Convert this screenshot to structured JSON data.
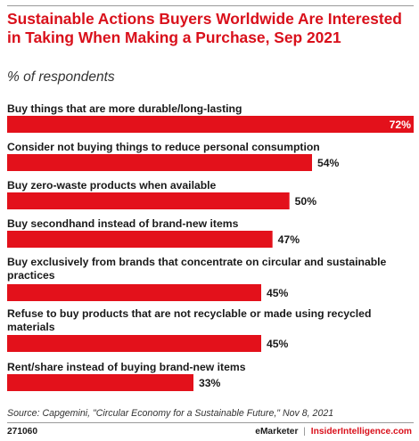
{
  "title": "Sustainable Actions Buyers Worldwide Are Interested in Taking When Making a Purchase, Sep 2021",
  "subtitle": "% of respondents",
  "colors": {
    "accent": "#d9101b",
    "bar": "#e3111b",
    "text": "#1a1a1a"
  },
  "chart_data": {
    "type": "bar",
    "orientation": "horizontal",
    "categories": [
      "Buy things that are more durable/long-lasting",
      "Consider not buying things to reduce personal consumption",
      "Buy zero-waste products when available",
      "Buy secondhand instead of brand-new items",
      "Buy exclusively from brands that concentrate on circular and sustainable practices",
      "Refuse to buy products that are not recyclable or made using recycled materials",
      "Rent/share instead of buying brand-new items"
    ],
    "values": [
      72,
      54,
      50,
      47,
      45,
      45,
      33
    ],
    "value_labels": [
      "72%",
      "54%",
      "50%",
      "47%",
      "45%",
      "45%",
      "33%"
    ],
    "unit": "%",
    "xlim": [
      0,
      72
    ],
    "grid": false,
    "legend": "none"
  },
  "source": "Source: Capgemini, \"Circular Economy for a Sustainable Future,\" Nov 8, 2021",
  "footer": {
    "chart_id": "271060",
    "brand_left": "eMarketer",
    "separator": "|",
    "brand_right": "InsiderIntelligence.com"
  }
}
